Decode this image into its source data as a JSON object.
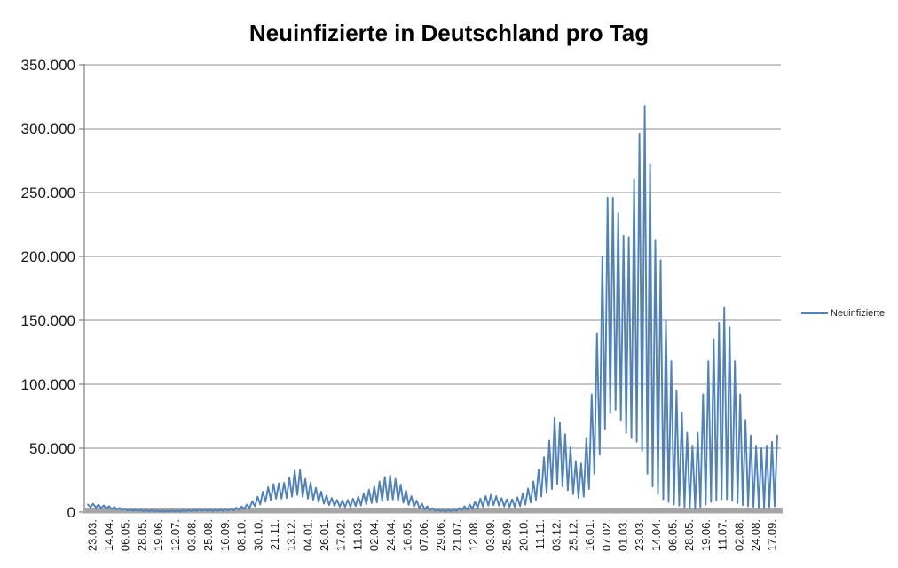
{
  "page": {
    "background": "#FFFFFF"
  },
  "chart_data": {
    "type": "line",
    "title": "Neuinfizierte in Deutschland pro Tag",
    "xlabel": "",
    "ylabel": "",
    "grid": "horizontal-only",
    "legend_position": "right-middle",
    "ylim": [
      0,
      350000
    ],
    "y_ticks": [
      {
        "value": 0,
        "label": "0"
      },
      {
        "value": 50000,
        "label": "50.000"
      },
      {
        "value": 100000,
        "label": "100.000"
      },
      {
        "value": 150000,
        "label": "150.000"
      },
      {
        "value": 200000,
        "label": "200.000"
      },
      {
        "value": 250000,
        "label": "250.000"
      },
      {
        "value": 300000,
        "label": "300.000"
      },
      {
        "value": 350000,
        "label": "350.000"
      }
    ],
    "x_tick_labels": [
      "23.03.",
      "14.04.",
      "06.05.",
      "28.05.",
      "19.06.",
      "12.07.",
      "03.08.",
      "25.08.",
      "16.09.",
      "08.10.",
      "30.10.",
      "21.11.",
      "13.12.",
      "04.01.",
      "26.01.",
      "17.02.",
      "11.03.",
      "02.04.",
      "24.04.",
      "16.05.",
      "07.06.",
      "29.06.",
      "21.07.",
      "12.08.",
      "03.09.",
      "25.09.",
      "20.10.",
      "11.11.",
      "03.12.",
      "25.12.",
      "16.01.",
      "07.02.",
      "01.03.",
      "23.03.",
      "14.04.",
      "06.05.",
      "28.05.",
      "19.06.",
      "11.07.",
      "02.08.",
      "24.08.",
      "17.09."
    ],
    "sampling_note": "daily series (23.03.2020 - 17.09.2022) sampled twice per week: midweek peak / weekend trough",
    "series": [
      {
        "name": "Neuinfizierte",
        "color": "#4F81BD",
        "values": [
          6000,
          3800,
          6500,
          3500,
          5800,
          3000,
          5200,
          2800,
          4600,
          2400,
          4000,
          2000,
          3200,
          1600,
          2600,
          1200,
          2200,
          1000,
          1900,
          800,
          1700,
          700,
          1500,
          600,
          1300,
          500,
          1100,
          500,
          1000,
          400,
          1000,
          400,
          1100,
          500,
          1200,
          500,
          1400,
          600,
          1600,
          700,
          1800,
          800,
          2000,
          900,
          2100,
          900,
          2000,
          800,
          1900,
          800,
          2100,
          900,
          2400,
          1100,
          2800,
          1300,
          3400,
          1800,
          4400,
          2400,
          6000,
          3200,
          8500,
          4500,
          12000,
          6000,
          16000,
          8000,
          19500,
          9500,
          22000,
          10500,
          22500,
          10500,
          23000,
          11000,
          27000,
          12000,
          32500,
          13500,
          33000,
          12000,
          26000,
          10500,
          23000,
          9500,
          19000,
          8000,
          16000,
          6500,
          13000,
          5500,
          11000,
          4800,
          9500,
          4200,
          9000,
          4000,
          9500,
          4200,
          10500,
          4600,
          12000,
          5200,
          14500,
          6200,
          17500,
          7000,
          20000,
          7500,
          24000,
          8500,
          27500,
          9500,
          28500,
          9800,
          26000,
          8800,
          21500,
          7200,
          17000,
          5600,
          12500,
          4200,
          9000,
          3000,
          6500,
          2200,
          4500,
          1500,
          3000,
          1000,
          2000,
          700,
          1400,
          600,
          1600,
          700,
          2200,
          900,
          3200,
          1300,
          4500,
          1800,
          6000,
          2400,
          8000,
          3200,
          10500,
          4200,
          12500,
          5000,
          13500,
          5400,
          12500,
          5000,
          11000,
          4400,
          10000,
          4000,
          10000,
          4000,
          11500,
          4600,
          14500,
          5800,
          18500,
          7400,
          24000,
          9500,
          33000,
          12000,
          43000,
          15000,
          56000,
          18000,
          74000,
          22000,
          70000,
          20000,
          61000,
          17000,
          51000,
          14000,
          40000,
          11000,
          38000,
          12000,
          58000,
          18000,
          92000,
          30000,
          140000,
          45000,
          200000,
          65000,
          246000,
          78000,
          246000,
          80000,
          234000,
          72000,
          216000,
          62000,
          215000,
          58000,
          260000,
          55000,
          296000,
          48000,
          318000,
          30000,
          272000,
          20000,
          213000,
          14000,
          197000,
          10000,
          150000,
          8000,
          118000,
          6000,
          95000,
          5000,
          78000,
          4000,
          62000,
          3500,
          52000,
          3000,
          62000,
          4000,
          92000,
          6000,
          118000,
          8000,
          135000,
          9000,
          148000,
          10000,
          160000,
          10000,
          145000,
          9000,
          118000,
          7000,
          92000,
          5500,
          72000,
          4500,
          60000,
          4000,
          52000,
          3500,
          50000,
          3500,
          52000,
          4000,
          55000,
          4500,
          60000
        ]
      }
    ],
    "colors": {
      "series": "#4F81BD",
      "gridline": "#8F8F8F",
      "axis": "#808080",
      "axis_bar": "#A6A6A6",
      "tick_text": "#1A1A1A",
      "title_text": "#000000"
    }
  }
}
